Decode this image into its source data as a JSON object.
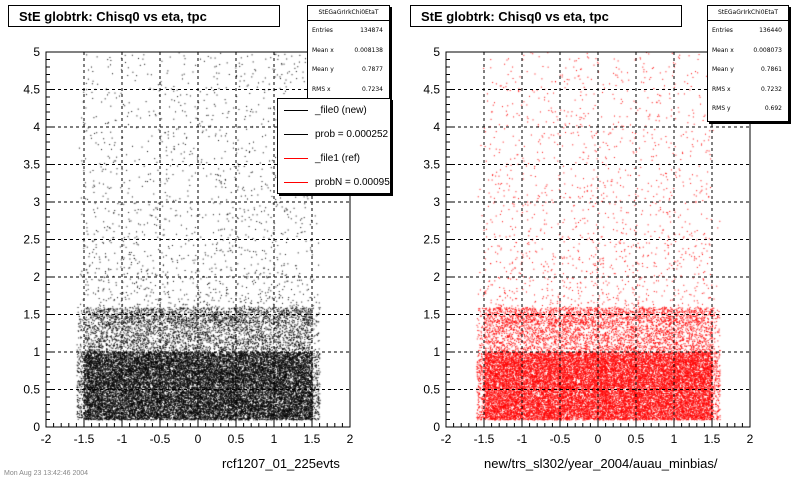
{
  "colors": {
    "marker_left": "#000000",
    "marker_right": "#ff0000",
    "ref_line": "#ff0000",
    "new_line": "#000000"
  },
  "chart_data": [
    {
      "type": "scatter",
      "title": "StE globtrk: Chisq0 vs eta, tpc",
      "xlabel": "rcf1207_01_225evts",
      "ylabel": "",
      "xlim": [
        -2,
        2
      ],
      "ylim": [
        0,
        5
      ],
      "xticks": [
        "-2",
        "-1.5",
        "-1",
        "-0.5",
        "0",
        "0.5",
        "1",
        "1.5",
        "2"
      ],
      "yticks": [
        "0",
        "0.5",
        "1",
        "1.5",
        "2",
        "2.5",
        "3",
        "3.5",
        "4",
        "4.5",
        "5"
      ],
      "grid": true,
      "marker_color": "#000000",
      "stats": {
        "name": "StEGaGrIrkChi0EtaT",
        "rows": [
          {
            "label": "Entries",
            "value": "134874"
          },
          {
            "label": "Mean x",
            "value": "0.008138"
          },
          {
            "label": "Mean y",
            "value": "0.7877"
          },
          {
            "label": "RMS x",
            "value": "0.7234"
          }
        ]
      },
      "legend": {
        "position": "top-right",
        "entries": [
          {
            "label": "_file0 (new)",
            "color": "#000000"
          },
          {
            "label": "prob = 0.000252",
            "color": "#000000"
          },
          {
            "label": "_file1 (ref)",
            "color": "#ff0000"
          },
          {
            "label": "probN = 0.00095",
            "color": "#ff0000"
          }
        ]
      }
    },
    {
      "type": "scatter",
      "title": "StE globtrk: Chisq0 vs eta, tpc",
      "xlabel": "new/trs_sl302/year_2004/auau_minbias/",
      "ylabel": "",
      "xlim": [
        -2,
        2
      ],
      "ylim": [
        0,
        5
      ],
      "xticks": [
        "-2",
        "-1.5",
        "-1",
        "-0.5",
        "0",
        "0.5",
        "1",
        "1.5",
        "2"
      ],
      "yticks": [
        "0",
        "0.5",
        "1",
        "1.5",
        "2",
        "2.5",
        "3",
        "3.5",
        "4",
        "4.5",
        "5"
      ],
      "grid": true,
      "marker_color": "#ff0000",
      "stats": {
        "name": "StEGaGrIrkChi0EtaT",
        "rows": [
          {
            "label": "Entries",
            "value": "136440"
          },
          {
            "label": "Mean x",
            "value": "0.008073"
          },
          {
            "label": "Mean y",
            "value": "0.7861"
          },
          {
            "label": "RMS x",
            "value": "0.7232"
          },
          {
            "label": "RMS y",
            "value": "0.692"
          }
        ]
      }
    }
  ],
  "footer": "Mon Aug 23 13:42:46 2004"
}
